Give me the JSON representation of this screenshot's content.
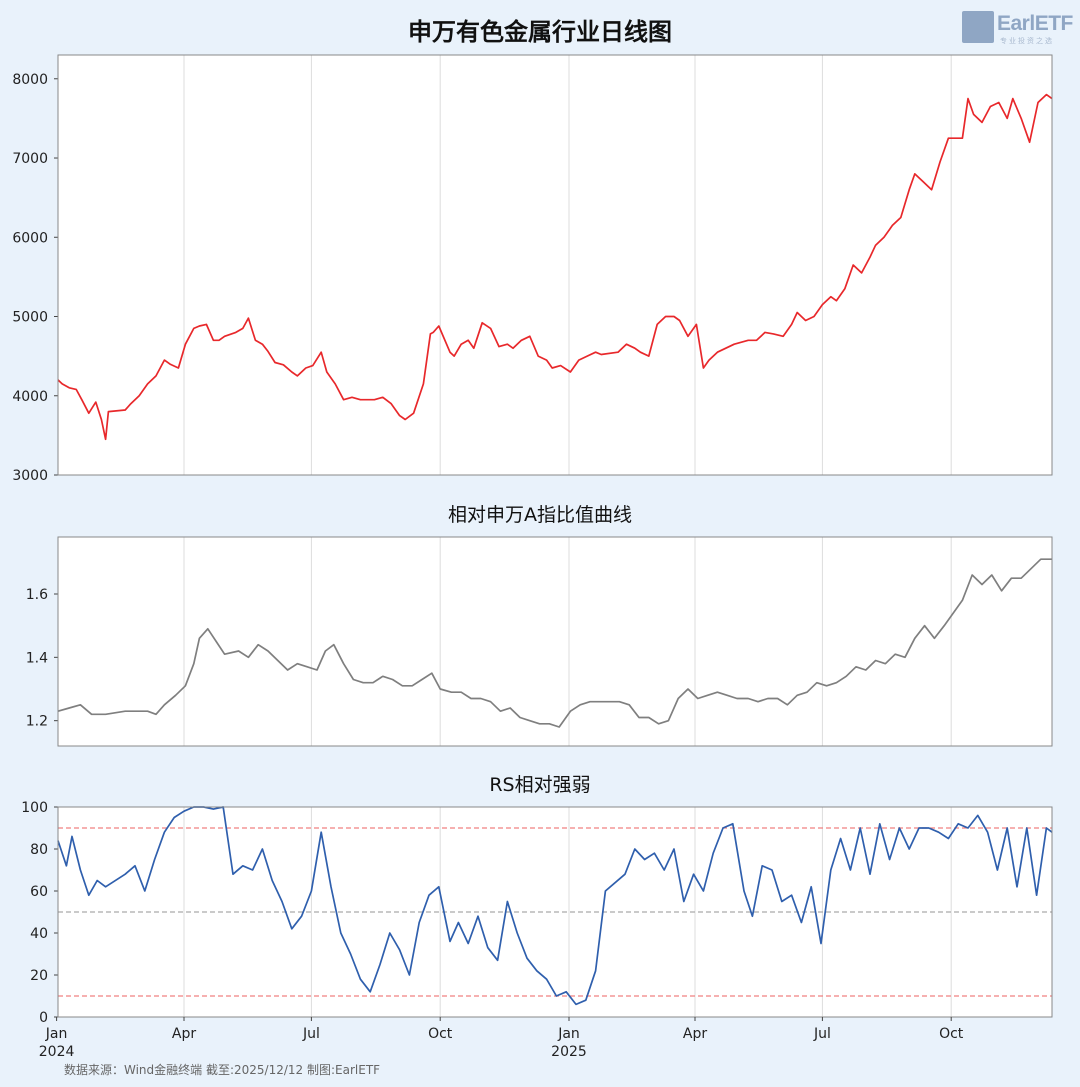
{
  "header": {
    "title": "申万有色金属行业日线图"
  },
  "logo": {
    "text": "EarlETF",
    "subtext": "专业投资之选"
  },
  "footer": {
    "source": "数据来源：Wind金融终端 截至:2025/12/12 制图:EarlETF"
  },
  "colors": {
    "price_line": "#e8282b",
    "relative_line": "#7f7f7f",
    "rs_line": "#2f5fad",
    "threshold_line": "#f08080",
    "mid_line": "#aaaaaa",
    "grid": "#dddddd",
    "plot_bg": "#ffffff",
    "page_bg": "#e9f2fb"
  },
  "chart_data": [
    {
      "type": "line",
      "title": "申万有色金属行业日线图",
      "xlabel": "",
      "ylabel": "",
      "x_ticks": [
        "Jan\n2024",
        "Apr",
        "Jul",
        "Oct",
        "Jan\n2025",
        "Apr",
        "Jul",
        "Oct"
      ],
      "x_tick_dates": [
        "2024-01-01",
        "2024-04-01",
        "2024-07-01",
        "2024-10-01",
        "2025-01-01",
        "2025-04-01",
        "2025-07-01",
        "2025-10-01"
      ],
      "xlim": [
        "2024-01-02",
        "2025-12-12"
      ],
      "ylim": [
        3000,
        8300
      ],
      "y_ticks": [
        3000,
        4000,
        5000,
        6000,
        7000,
        8000
      ],
      "grid": "vertical",
      "series": [
        {
          "values_x": [
            "2024-01-02",
            "2024-01-05",
            "2024-01-10",
            "2024-01-15",
            "2024-01-19",
            "2024-01-24",
            "2024-01-29",
            "2024-02-02",
            "2024-02-05",
            "2024-02-07",
            "2024-02-19",
            "2024-02-23",
            "2024-02-29",
            "2024-03-06",
            "2024-03-12",
            "2024-03-18",
            "2024-03-22",
            "2024-03-28",
            "2024-04-02",
            "2024-04-08",
            "2024-04-12",
            "2024-04-17",
            "2024-04-22",
            "2024-04-26",
            "2024-04-30",
            "2024-05-08",
            "2024-05-13",
            "2024-05-17",
            "2024-05-22",
            "2024-05-27",
            "2024-05-31",
            "2024-06-05",
            "2024-06-11",
            "2024-06-17",
            "2024-06-21",
            "2024-06-27",
            "2024-07-02",
            "2024-07-08",
            "2024-07-12",
            "2024-07-18",
            "2024-07-24",
            "2024-07-30",
            "2024-08-05",
            "2024-08-09",
            "2024-08-15",
            "2024-08-21",
            "2024-08-27",
            "2024-09-02",
            "2024-09-06",
            "2024-09-12",
            "2024-09-19",
            "2024-09-24",
            "2024-09-26",
            "2024-09-30",
            "2024-10-08",
            "2024-10-11",
            "2024-10-16",
            "2024-10-21",
            "2024-10-25",
            "2024-10-31",
            "2024-11-06",
            "2024-11-12",
            "2024-11-18",
            "2024-11-22",
            "2024-11-28",
            "2024-12-04",
            "2024-12-10",
            "2024-12-16",
            "2024-12-20",
            "2024-12-26",
            "2025-01-02",
            "2025-01-08",
            "2025-01-14",
            "2025-01-20",
            "2025-01-24",
            "2025-02-05",
            "2025-02-11",
            "2025-02-17",
            "2025-02-21",
            "2025-02-27",
            "2025-03-05",
            "2025-03-11",
            "2025-03-17",
            "2025-03-21",
            "2025-03-27",
            "2025-04-02",
            "2025-04-07",
            "2025-04-11",
            "2025-04-17",
            "2025-04-23",
            "2025-04-29",
            "2025-05-09",
            "2025-05-15",
            "2025-05-21",
            "2025-05-27",
            "2025-06-03",
            "2025-06-09",
            "2025-06-13",
            "2025-06-19",
            "2025-06-25",
            "2025-07-01",
            "2025-07-07",
            "2025-07-11",
            "2025-07-17",
            "2025-07-23",
            "2025-07-29",
            "2025-08-04",
            "2025-08-08",
            "2025-08-14",
            "2025-08-20",
            "2025-08-26",
            "2025-09-01",
            "2025-09-05",
            "2025-09-11",
            "2025-09-17",
            "2025-09-23",
            "2025-09-29",
            "2025-10-09",
            "2025-10-13",
            "2025-10-17",
            "2025-10-23",
            "2025-10-29",
            "2025-11-04",
            "2025-11-10",
            "2025-11-14",
            "2025-11-20",
            "2025-11-26",
            "2025-12-02",
            "2025-12-08",
            "2025-12-12"
          ],
          "values": [
            4200,
            4150,
            4100,
            4080,
            3950,
            3780,
            3920,
            3700,
            3450,
            3800,
            3820,
            3900,
            4000,
            4150,
            4250,
            4450,
            4400,
            4350,
            4650,
            4850,
            4880,
            4900,
            4700,
            4700,
            4750,
            4800,
            4850,
            4980,
            4700,
            4650,
            4560,
            4420,
            4390,
            4300,
            4250,
            4350,
            4380,
            4550,
            4300,
            4150,
            3950,
            3980,
            3950,
            3950,
            3950,
            3980,
            3900,
            3750,
            3700,
            3780,
            4150,
            4780,
            4800,
            4880,
            4550,
            4500,
            4650,
            4700,
            4600,
            4920,
            4850,
            4620,
            4650,
            4600,
            4700,
            4750,
            4500,
            4450,
            4350,
            4380,
            4300,
            4450,
            4500,
            4550,
            4520,
            4550,
            4650,
            4600,
            4550,
            4500,
            4900,
            5000,
            5000,
            4950,
            4750,
            4900,
            4350,
            4450,
            4550,
            4600,
            4650,
            4700,
            4700,
            4800,
            4780,
            4750,
            4900,
            5050,
            4950,
            5000,
            5150,
            5250,
            5200,
            5350,
            5650,
            5550,
            5750,
            5900,
            6000,
            6150,
            6250,
            6600,
            6800,
            6700,
            6600,
            6950,
            7250,
            7250,
            7750,
            7550,
            7450,
            7650,
            7700,
            7500,
            7750,
            7500,
            7200,
            7700,
            7800,
            7750
          ],
          "color": "#e8282b"
        }
      ]
    },
    {
      "type": "line",
      "title": "相对申万A指比值曲线",
      "xlim": [
        "2024-01-02",
        "2025-12-12"
      ],
      "ylim": [
        1.12,
        1.78
      ],
      "y_ticks": [
        1.2,
        1.4,
        1.6
      ],
      "grid": "vertical",
      "series": [
        {
          "values_x": [
            "2024-01-02",
            "2024-01-10",
            "2024-01-18",
            "2024-01-26",
            "2024-02-05",
            "2024-02-19",
            "2024-02-28",
            "2024-03-06",
            "2024-03-12",
            "2024-03-18",
            "2024-03-26",
            "2024-04-02",
            "2024-04-08",
            "2024-04-12",
            "2024-04-18",
            "2024-04-24",
            "2024-04-30",
            "2024-05-10",
            "2024-05-17",
            "2024-05-24",
            "2024-05-31",
            "2024-06-07",
            "2024-06-14",
            "2024-06-21",
            "2024-06-28",
            "2024-07-05",
            "2024-07-11",
            "2024-07-17",
            "2024-07-24",
            "2024-07-31",
            "2024-08-07",
            "2024-08-14",
            "2024-08-21",
            "2024-08-28",
            "2024-09-04",
            "2024-09-11",
            "2024-09-18",
            "2024-09-25",
            "2024-10-01",
            "2024-10-09",
            "2024-10-16",
            "2024-10-23",
            "2024-10-30",
            "2024-11-06",
            "2024-11-13",
            "2024-11-20",
            "2024-11-27",
            "2024-12-04",
            "2024-12-11",
            "2024-12-18",
            "2024-12-25",
            "2025-01-02",
            "2025-01-09",
            "2025-01-16",
            "2025-01-23",
            "2025-02-06",
            "2025-02-13",
            "2025-02-20",
            "2025-02-27",
            "2025-03-06",
            "2025-03-13",
            "2025-03-20",
            "2025-03-27",
            "2025-04-03",
            "2025-04-10",
            "2025-04-17",
            "2025-04-24",
            "2025-05-01",
            "2025-05-09",
            "2025-05-16",
            "2025-05-23",
            "2025-05-30",
            "2025-06-06",
            "2025-06-13",
            "2025-06-20",
            "2025-06-27",
            "2025-07-04",
            "2025-07-11",
            "2025-07-18",
            "2025-07-25",
            "2025-08-01",
            "2025-08-08",
            "2025-08-15",
            "2025-08-22",
            "2025-08-29",
            "2025-09-05",
            "2025-09-12",
            "2025-09-19",
            "2025-09-26",
            "2025-10-09",
            "2025-10-16",
            "2025-10-23",
            "2025-10-30",
            "2025-11-06",
            "2025-11-13",
            "2025-11-20",
            "2025-11-27",
            "2025-12-04",
            "2025-12-12"
          ],
          "values": [
            1.23,
            1.24,
            1.25,
            1.22,
            1.22,
            1.23,
            1.23,
            1.23,
            1.22,
            1.25,
            1.28,
            1.31,
            1.38,
            1.46,
            1.49,
            1.45,
            1.41,
            1.42,
            1.4,
            1.44,
            1.42,
            1.39,
            1.36,
            1.38,
            1.37,
            1.36,
            1.42,
            1.44,
            1.38,
            1.33,
            1.32,
            1.32,
            1.34,
            1.33,
            1.31,
            1.31,
            1.33,
            1.35,
            1.3,
            1.29,
            1.29,
            1.27,
            1.27,
            1.26,
            1.23,
            1.24,
            1.21,
            1.2,
            1.19,
            1.19,
            1.18,
            1.23,
            1.25,
            1.26,
            1.26,
            1.26,
            1.25,
            1.21,
            1.21,
            1.19,
            1.2,
            1.27,
            1.3,
            1.27,
            1.28,
            1.29,
            1.28,
            1.27,
            1.27,
            1.26,
            1.27,
            1.27,
            1.25,
            1.28,
            1.29,
            1.32,
            1.31,
            1.32,
            1.34,
            1.37,
            1.36,
            1.39,
            1.38,
            1.41,
            1.4,
            1.46,
            1.5,
            1.46,
            1.5,
            1.58,
            1.66,
            1.63,
            1.66,
            1.61,
            1.65,
            1.65,
            1.68,
            1.71,
            1.71
          ],
          "color": "#7f7f7f"
        }
      ]
    },
    {
      "type": "line",
      "title": "RS相对强弱",
      "xlim": [
        "2024-01-02",
        "2025-12-12"
      ],
      "ylim": [
        0,
        100
      ],
      "y_ticks": [
        0,
        20,
        40,
        60,
        80,
        100
      ],
      "reference_lines": [
        90,
        50,
        10
      ],
      "grid": "vertical",
      "series": [
        {
          "values_x": [
            "2024-01-02",
            "2024-01-08",
            "2024-01-12",
            "2024-01-18",
            "2024-01-24",
            "2024-01-30",
            "2024-02-05",
            "2024-02-19",
            "2024-02-26",
            "2024-03-04",
            "2024-03-11",
            "2024-03-18",
            "2024-03-25",
            "2024-04-01",
            "2024-04-08",
            "2024-04-15",
            "2024-04-22",
            "2024-04-29",
            "2024-05-06",
            "2024-05-13",
            "2024-05-20",
            "2024-05-27",
            "2024-06-03",
            "2024-06-10",
            "2024-06-17",
            "2024-06-24",
            "2024-07-01",
            "2024-07-08",
            "2024-07-15",
            "2024-07-22",
            "2024-07-29",
            "2024-08-05",
            "2024-08-12",
            "2024-08-19",
            "2024-08-26",
            "2024-09-02",
            "2024-09-09",
            "2024-09-16",
            "2024-09-23",
            "2024-09-30",
            "2024-10-08",
            "2024-10-14",
            "2024-10-21",
            "2024-10-28",
            "2024-11-04",
            "2024-11-11",
            "2024-11-18",
            "2024-11-25",
            "2024-12-02",
            "2024-12-09",
            "2024-12-16",
            "2024-12-23",
            "2024-12-30",
            "2025-01-06",
            "2025-01-13",
            "2025-01-20",
            "2025-01-27",
            "2025-02-10",
            "2025-02-17",
            "2025-02-24",
            "2025-03-03",
            "2025-03-10",
            "2025-03-17",
            "2025-03-24",
            "2025-03-31",
            "2025-04-07",
            "2025-04-14",
            "2025-04-21",
            "2025-04-28",
            "2025-05-06",
            "2025-05-12",
            "2025-05-19",
            "2025-05-26",
            "2025-06-02",
            "2025-06-09",
            "2025-06-16",
            "2025-06-23",
            "2025-06-30",
            "2025-07-07",
            "2025-07-14",
            "2025-07-21",
            "2025-07-28",
            "2025-08-04",
            "2025-08-11",
            "2025-08-18",
            "2025-08-25",
            "2025-09-01",
            "2025-09-08",
            "2025-09-15",
            "2025-09-22",
            "2025-09-29",
            "2025-10-06",
            "2025-10-13",
            "2025-10-20",
            "2025-10-27",
            "2025-11-03",
            "2025-11-10",
            "2025-11-17",
            "2025-11-24",
            "2025-12-01",
            "2025-12-08",
            "2025-12-12"
          ],
          "values": [
            84,
            72,
            86,
            70,
            58,
            65,
            62,
            68,
            72,
            60,
            75,
            88,
            95,
            98,
            100,
            100,
            99,
            100,
            68,
            72,
            70,
            80,
            65,
            55,
            42,
            48,
            60,
            88,
            62,
            40,
            30,
            18,
            12,
            25,
            40,
            32,
            20,
            45,
            58,
            62,
            36,
            45,
            35,
            48,
            33,
            27,
            55,
            40,
            28,
            22,
            18,
            10,
            12,
            6,
            8,
            22,
            60,
            68,
            80,
            75,
            78,
            70,
            80,
            55,
            68,
            60,
            78,
            90,
            92,
            60,
            48,
            72,
            70,
            55,
            58,
            45,
            62,
            35,
            70,
            85,
            70,
            90,
            68,
            92,
            75,
            90,
            80,
            90,
            90,
            88,
            85,
            92,
            90,
            96,
            88,
            70,
            90,
            62,
            90,
            58,
            90,
            88
          ],
          "color": "#2f5fad"
        }
      ]
    }
  ]
}
